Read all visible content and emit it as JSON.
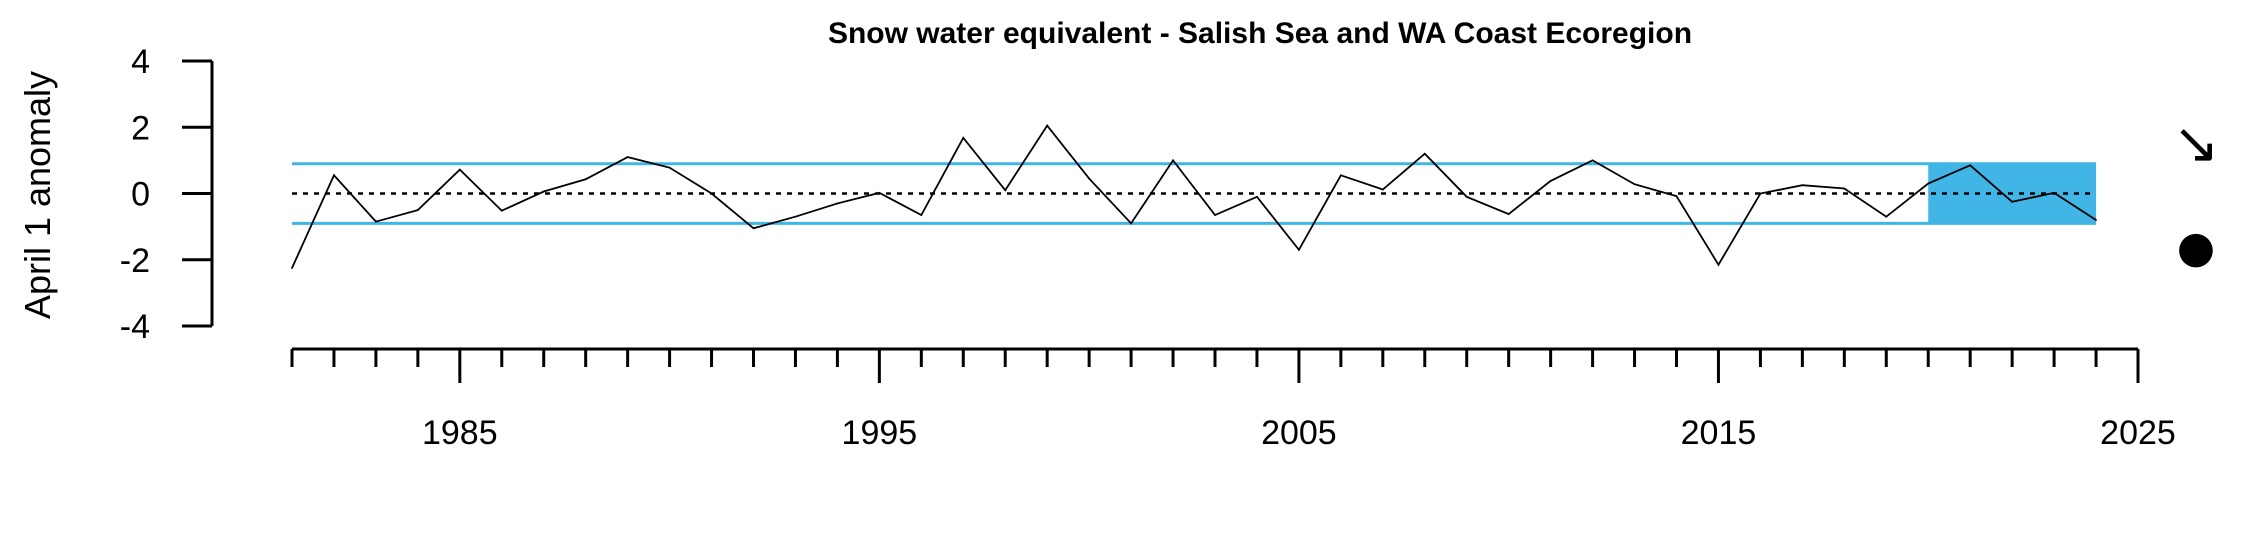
{
  "chart_data": {
    "type": "line",
    "title": "Snow water equivalent - Salish Sea and WA Coast Ecoregion",
    "ylabel": "April 1 anomaly",
    "xlabel": "",
    "xlim": [
      1981,
      2025
    ],
    "ylim": [
      -4,
      4
    ],
    "x_ticks_major": [
      1985,
      1995,
      2005,
      2015,
      2025
    ],
    "x_tick_labels": [
      "1985",
      "1995",
      "2005",
      "2015",
      "2025"
    ],
    "y_ticks": [
      4,
      2,
      0,
      -2,
      -4
    ],
    "y_tick_labels": [
      "4",
      "2",
      "0",
      "-2",
      "-4"
    ],
    "mean": 0,
    "sd_upper": 0.9,
    "sd_lower": -0.9,
    "recent_window": [
      2020,
      2024
    ],
    "trend_symbol": "↘",
    "mean_symbol": "●",
    "colors": {
      "line": "#000000",
      "band": "#41b6e6",
      "bandLine": "#41b6e6"
    },
    "x": [
      1981,
      1982,
      1983,
      1984,
      1985,
      1986,
      1987,
      1988,
      1989,
      1990,
      1991,
      1992,
      1993,
      1994,
      1995,
      1996,
      1997,
      1998,
      1999,
      2000,
      2001,
      2002,
      2003,
      2004,
      2005,
      2006,
      2007,
      2008,
      2009,
      2010,
      2011,
      2012,
      2013,
      2014,
      2015,
      2016,
      2017,
      2018,
      2019,
      2020,
      2021,
      2022,
      2023,
      2024
    ],
    "values": [
      -2.25,
      0.55,
      -0.85,
      -0.5,
      0.72,
      -0.52,
      0.06,
      0.43,
      1.1,
      0.78,
      0.0,
      -1.05,
      -0.7,
      -0.3,
      0.02,
      -0.65,
      1.68,
      0.1,
      2.05,
      0.45,
      -0.9,
      1.0,
      -0.65,
      -0.1,
      -1.7,
      0.55,
      0.12,
      1.2,
      -0.1,
      -0.62,
      0.38,
      1.0,
      0.28,
      -0.08,
      -2.15,
      0.0,
      0.25,
      0.15,
      -0.7,
      0.3,
      0.85,
      -0.25,
      0.02,
      -0.8
    ]
  }
}
